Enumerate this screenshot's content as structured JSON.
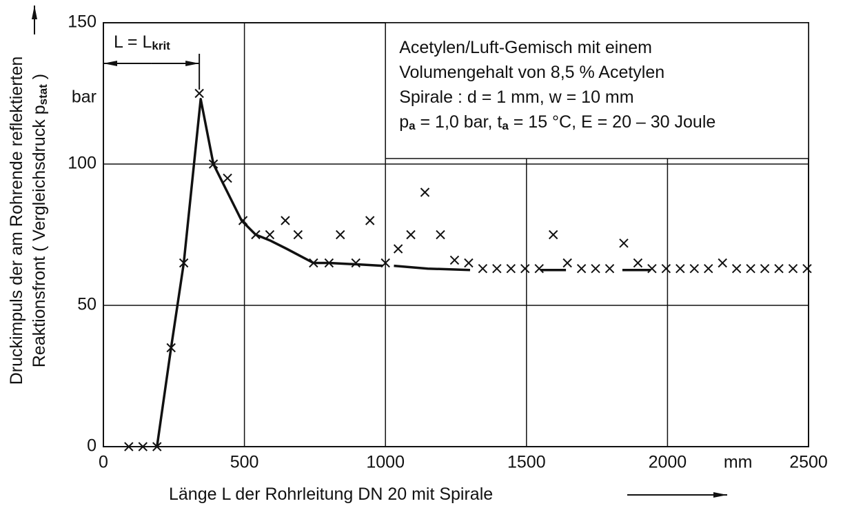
{
  "chart_data": {
    "type": "line",
    "y_label_lines": [
      [
        "Druckimpuls der am Rohrende reflektierten"
      ],
      [
        "Reaktionsfront ( Vergleichsdruck p",
        "stat",
        " )"
      ]
    ],
    "x_label": [
      [
        "Länge L der Rohrleitung DN 20 mit Spirale"
      ]
    ],
    "y_unit": "bar",
    "x_unit": "mm",
    "critical_label": [
      [
        "L = L",
        "krit"
      ]
    ],
    "annotation_lines": [
      [
        "Acetylen/Luft-Gemisch mit einem"
      ],
      [
        "Volumengehalt von 8,5 % Acetylen"
      ],
      [
        "Spirale :    d = 1 mm,      w = 10 mm"
      ],
      [
        "p",
        "a",
        " = 1,0 bar,   t",
        "a",
        " = 15 °C,   E = 20 – 30 Joule"
      ]
    ],
    "xlim": [
      0,
      2500
    ],
    "ylim": [
      0,
      150
    ],
    "xticks": [
      0,
      500,
      1000,
      1500,
      2000,
      2500
    ],
    "yticks": [
      0,
      50,
      100,
      150
    ],
    "grid": true,
    "critical_x": 340,
    "series": [
      {
        "kind": "line",
        "color": "#111111",
        "x": [
          190,
          240,
          285,
          345,
          390,
          440,
          490,
          540,
          590,
          650,
          745,
          800,
          900,
          990,
          1010,
          1030,
          1150,
          1300,
          1425,
          1550,
          1640,
          1740,
          1840,
          1940
        ],
        "values": [
          0,
          35,
          65,
          123,
          100,
          90,
          80,
          75,
          73,
          70,
          65,
          65,
          64.5,
          64,
          null,
          64,
          63,
          62.5,
          null,
          62.5,
          62.5,
          null,
          62.5,
          62.5
        ]
      },
      {
        "kind": "scatter",
        "color": "#111111",
        "x": [
          90,
          140,
          190,
          240,
          285,
          340,
          390,
          440,
          495,
          540,
          590,
          645,
          690,
          745,
          800,
          840,
          895,
          945,
          1000,
          1045,
          1090,
          1140,
          1195,
          1245,
          1295,
          1345,
          1395,
          1445,
          1495,
          1545,
          1595,
          1645,
          1695,
          1745,
          1795,
          1845,
          1895,
          1945,
          1995,
          2045,
          2095,
          2145,
          2195,
          2245,
          2295,
          2345,
          2395,
          2445,
          2495
        ],
        "values": [
          0,
          0,
          0,
          35,
          65,
          125,
          100,
          95,
          80,
          75,
          75,
          80,
          75,
          65,
          65,
          75,
          65,
          80,
          65,
          70,
          75,
          90,
          75,
          66,
          65,
          63,
          63,
          63,
          63,
          63,
          75,
          65,
          63,
          63,
          63,
          72,
          65,
          63,
          63,
          63,
          63,
          63,
          65,
          63,
          63,
          63,
          63,
          63,
          63
        ]
      }
    ]
  }
}
